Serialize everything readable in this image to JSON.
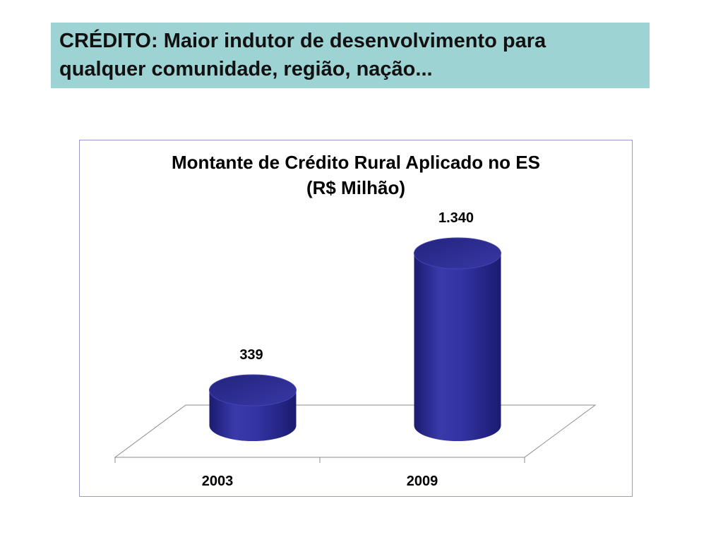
{
  "slide": {
    "title_line1": "CRÉDITO: Maior indutor de desenvolvimento para",
    "title_line2": "qualquer comunidade, região, nação..."
  },
  "colors": {
    "title_box": "#9ed3d4",
    "bar": "#3333a3",
    "bar_dark": "#1b1b70",
    "frame_border": "#9a9acc",
    "floor_line": "#8c8c8c"
  },
  "chart_data": {
    "type": "bar",
    "style": "3d-cylinder",
    "title": "Montante de Crédito Rural Aplicado no ES",
    "subtitle": "(R$ Milhão)",
    "categories": [
      "2003",
      "2009"
    ],
    "values": [
      339,
      1340
    ],
    "value_labels": [
      "339",
      "1.340"
    ],
    "legend": "none",
    "grid": false
  }
}
